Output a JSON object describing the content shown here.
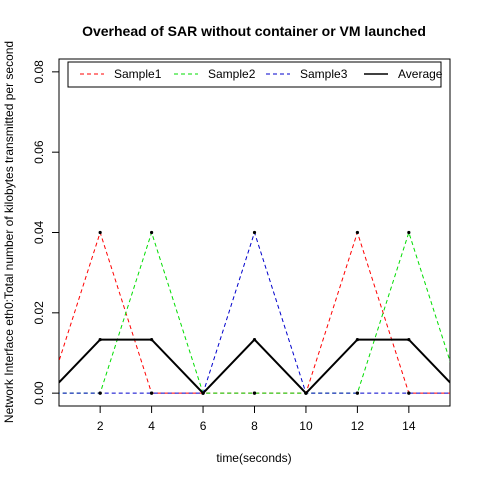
{
  "chart_data": {
    "type": "line",
    "title": "Overhead of SAR without container or VM launched",
    "xlabel": "time(seconds)",
    "ylabel": "Network Interface eth0:Total number of kilobytes transmitted per second",
    "xlim": [
      0.4,
      15.6
    ],
    "ylim": [
      -0.0032,
      0.0832
    ],
    "x_ticks": [
      2,
      4,
      6,
      8,
      10,
      12,
      14
    ],
    "y_ticks": [
      0.0,
      0.02,
      0.04,
      0.06,
      0.08
    ],
    "y_tick_labels": [
      "0.00",
      "0.02",
      "0.04",
      "0.06",
      "0.08"
    ],
    "x": [
      0,
      2,
      4,
      6,
      8,
      10,
      12,
      14,
      16
    ],
    "legend_position": "top",
    "series": [
      {
        "name": "Sample1",
        "color": "#ff0000",
        "style": "dashed",
        "values": [
          0,
          0.04,
          0,
          0,
          0,
          0,
          0.04,
          0,
          0
        ]
      },
      {
        "name": "Sample2",
        "color": "#00dd00",
        "style": "dashed",
        "values": [
          0,
          0,
          0.04,
          0,
          0,
          0,
          0,
          0.04,
          0
        ]
      },
      {
        "name": "Sample3",
        "color": "#0000cc",
        "style": "dashed",
        "values": [
          0,
          0,
          0,
          0,
          0.04,
          0,
          0,
          0,
          0
        ]
      },
      {
        "name": "Average",
        "color": "#000000",
        "style": "solid",
        "values": [
          0,
          0.01333,
          0.01333,
          0,
          0.01333,
          0,
          0.01333,
          0.01333,
          0
        ]
      }
    ]
  }
}
